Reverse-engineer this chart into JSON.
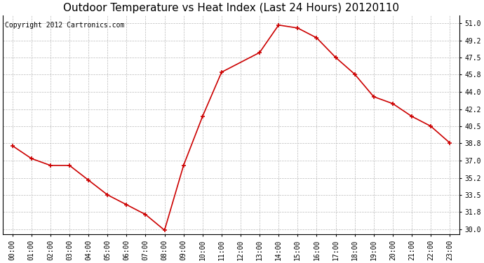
{
  "title": "Outdoor Temperature vs Heat Index (Last 24 Hours) 20120110",
  "copyright": "Copyright 2012 Cartronics.com",
  "x_labels": [
    "00:00",
    "01:00",
    "02:00",
    "03:00",
    "04:00",
    "05:00",
    "06:00",
    "07:00",
    "08:00",
    "09:00",
    "10:00",
    "11:00",
    "13:00",
    "14:00",
    "15:00",
    "16:00",
    "17:00",
    "18:00",
    "19:00",
    "20:00",
    "21:00",
    "22:00",
    "23:00"
  ],
  "x_positions": [
    0,
    1,
    2,
    3,
    4,
    5,
    6,
    7,
    8,
    9,
    10,
    11,
    13,
    14,
    15,
    16,
    17,
    18,
    19,
    20,
    21,
    22,
    23
  ],
  "y_values": [
    38.5,
    37.2,
    36.5,
    36.5,
    35.0,
    33.5,
    32.5,
    31.5,
    29.9,
    36.5,
    41.5,
    46.0,
    48.0,
    50.8,
    50.5,
    49.5,
    47.5,
    45.8,
    43.5,
    42.8,
    41.5,
    40.5,
    38.8
  ],
  "y_tick_labels": [
    "30.0",
    "31.8",
    "33.5",
    "35.2",
    "37.0",
    "38.8",
    "40.5",
    "42.2",
    "44.0",
    "45.8",
    "47.5",
    "49.2",
    "51.0"
  ],
  "y_tick_values": [
    30.0,
    31.8,
    33.5,
    35.2,
    37.0,
    38.8,
    40.5,
    42.2,
    44.0,
    45.8,
    47.5,
    49.2,
    51.0
  ],
  "y_min": 29.5,
  "y_max": 51.8,
  "line_color": "#cc0000",
  "marker_color": "#cc0000",
  "bg_color": "#ffffff",
  "grid_color": "#bbbbbb",
  "title_fontsize": 11,
  "tick_fontsize": 7,
  "copyright_fontsize": 7
}
